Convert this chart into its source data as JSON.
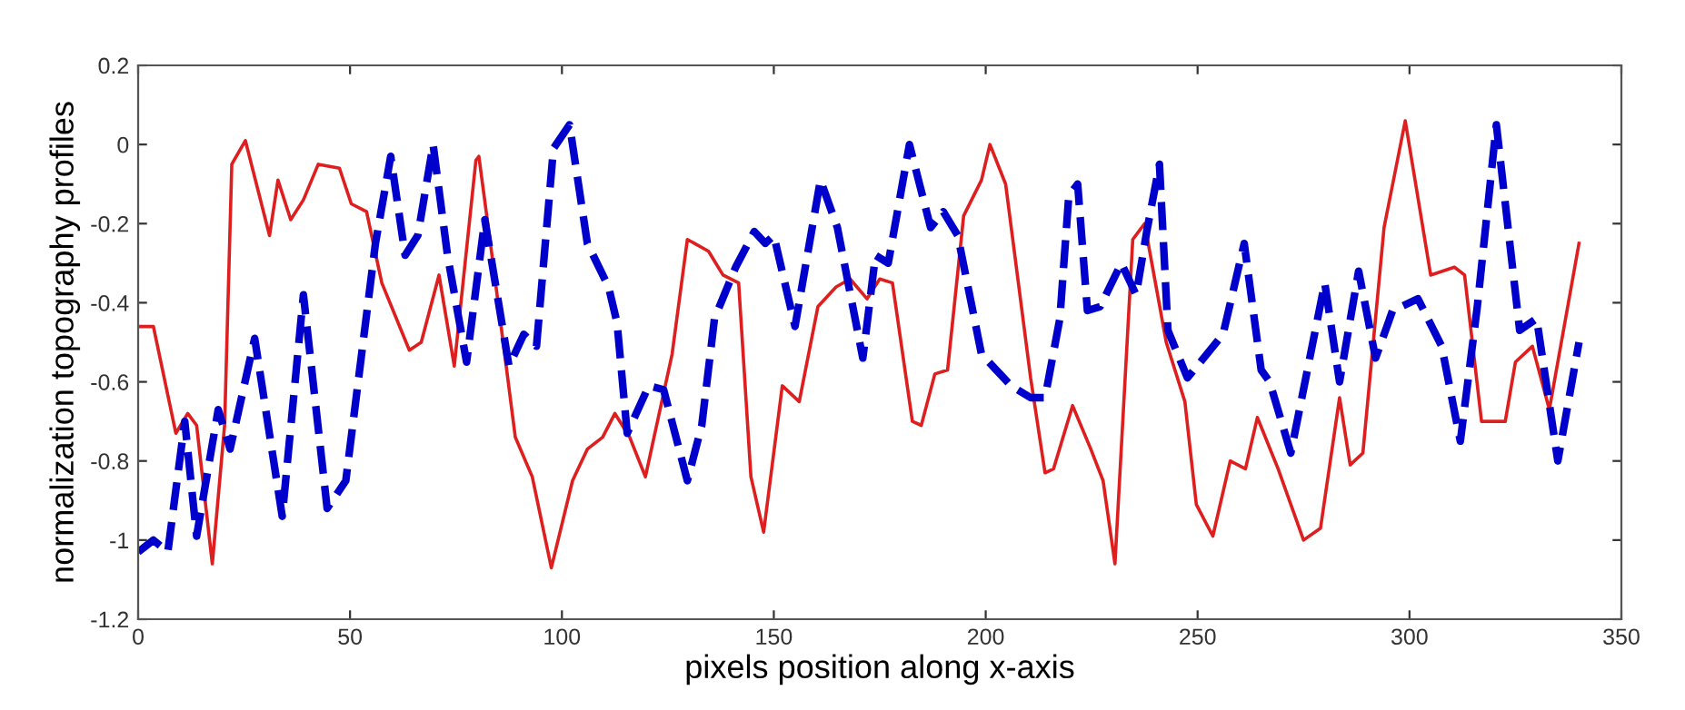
{
  "chart_data": {
    "type": "line",
    "xlabel": "pixels position along x-axis",
    "ylabel": "normalization topography profiles",
    "xlim": [
      0,
      350
    ],
    "xticks": [
      0,
      50,
      100,
      150,
      200,
      250,
      300,
      350
    ],
    "ylim": [
      -1.2,
      0.2
    ],
    "yticks": [
      -1.2,
      -1,
      -0.8,
      -0.6,
      -0.4,
      -0.2,
      0,
      0.2
    ],
    "grid": false,
    "legend": false,
    "marker": "none",
    "series": [
      {
        "color": "#dd1f1f",
        "line_style": "solid",
        "x": [
          0,
          3.6,
          8.9,
          11.7,
          13.8,
          17.5,
          20.4,
          22.1,
          25.3,
          31,
          33,
          36,
          39,
          42.5,
          47.5,
          50.3,
          53.9,
          57.5,
          64,
          66.8,
          71,
          74.6,
          79.7,
          80.4,
          83.5,
          89,
          93,
          97.5,
          102.5,
          106,
          109.6,
          112.5,
          116,
          119.7,
          126,
          129.6,
          134.6,
          138,
          141.7,
          144.6,
          147.6,
          152,
          156,
          160.4,
          164.7,
          168,
          172,
          175,
          178,
          182.7,
          184.8,
          188,
          191,
          194.8,
          199,
          201,
          204.7,
          210.6,
          214,
          216,
          220.5,
          224.8,
          227.7,
          230.5,
          234.7,
          237.5,
          242.6,
          247,
          249.7,
          253.6,
          257.7,
          261.3,
          264.1,
          269,
          275,
          279,
          283.5,
          286,
          289,
          294,
          299,
          305,
          310.6,
          313,
          317,
          322.6,
          325,
          329,
          333,
          340
        ],
        "values": [
          -0.46,
          -0.46,
          -0.73,
          -0.68,
          -0.71,
          -1.06,
          -0.71,
          -0.05,
          0.01,
          -0.23,
          -0.09,
          -0.19,
          -0.14,
          -0.05,
          -0.06,
          -0.15,
          -0.17,
          -0.35,
          -0.52,
          -0.5,
          -0.33,
          -0.56,
          -0.04,
          -0.03,
          -0.28,
          -0.74,
          -0.84,
          -1.07,
          -0.85,
          -0.77,
          -0.74,
          -0.68,
          -0.74,
          -0.84,
          -0.53,
          -0.24,
          -0.27,
          -0.33,
          -0.35,
          -0.84,
          -0.98,
          -0.61,
          -0.65,
          -0.41,
          -0.36,
          -0.34,
          -0.39,
          -0.34,
          -0.35,
          -0.7,
          -0.71,
          -0.58,
          -0.57,
          -0.18,
          -0.09,
          0.0,
          -0.1,
          -0.59,
          -0.83,
          -0.82,
          -0.66,
          -0.77,
          -0.85,
          -1.06,
          -0.24,
          -0.2,
          -0.5,
          -0.65,
          -0.91,
          -0.99,
          -0.8,
          -0.82,
          -0.69,
          -0.82,
          -1.0,
          -0.97,
          -0.64,
          -0.81,
          -0.78,
          -0.21,
          0.06,
          -0.33,
          -0.31,
          -0.33,
          -0.7,
          -0.7,
          -0.55,
          -0.51,
          -0.67,
          -0.25
        ]
      },
      {
        "color": "#0000cc",
        "line_style": "dashed",
        "x": [
          0,
          3.6,
          7,
          11,
          13.8,
          18.9,
          21.7,
          27.5,
          34,
          39,
          44.6,
          49,
          56,
          59.6,
          63,
          66,
          69.6,
          73,
          77.5,
          81.8,
          87.5,
          91,
          94,
          98,
          101.8,
          106,
          111,
          113,
          115.4,
          120.5,
          124,
          129.6,
          133,
          136,
          141,
          145.4,
          148,
          150,
          155,
          161,
          165,
          171,
          174,
          177,
          182,
          187,
          190,
          193.4,
          199,
          206,
          210.6,
          214,
          217.5,
          219.6,
          221.7,
          224,
          227,
          232,
          235.5,
          238,
          241,
          243,
          247.6,
          256,
          261,
          265,
          267,
          272,
          280,
          283.5,
          288,
          292,
          296,
          302,
          307.6,
          312,
          316,
          320.5,
          326,
          330,
          335,
          340
        ],
        "values": [
          -1.03,
          -1.0,
          -1.03,
          -0.7,
          -0.99,
          -0.67,
          -0.77,
          -0.49,
          -0.94,
          -0.38,
          -0.92,
          -0.85,
          -0.25,
          -0.03,
          -0.28,
          -0.23,
          0.0,
          -0.28,
          -0.55,
          -0.19,
          -0.56,
          -0.48,
          -0.51,
          -0.01,
          0.05,
          -0.25,
          -0.36,
          -0.45,
          -0.73,
          -0.61,
          -0.62,
          -0.85,
          -0.71,
          -0.44,
          -0.31,
          -0.22,
          -0.25,
          -0.23,
          -0.46,
          -0.09,
          -0.21,
          -0.54,
          -0.28,
          -0.3,
          0.0,
          -0.21,
          -0.17,
          -0.23,
          -0.53,
          -0.61,
          -0.64,
          -0.64,
          -0.44,
          -0.13,
          -0.1,
          -0.42,
          -0.41,
          -0.3,
          -0.38,
          -0.22,
          -0.05,
          -0.47,
          -0.59,
          -0.48,
          -0.25,
          -0.57,
          -0.6,
          -0.78,
          -0.35,
          -0.6,
          -0.32,
          -0.54,
          -0.42,
          -0.39,
          -0.51,
          -0.75,
          -0.41,
          0.05,
          -0.47,
          -0.44,
          -0.8,
          -0.5
        ]
      }
    ]
  }
}
